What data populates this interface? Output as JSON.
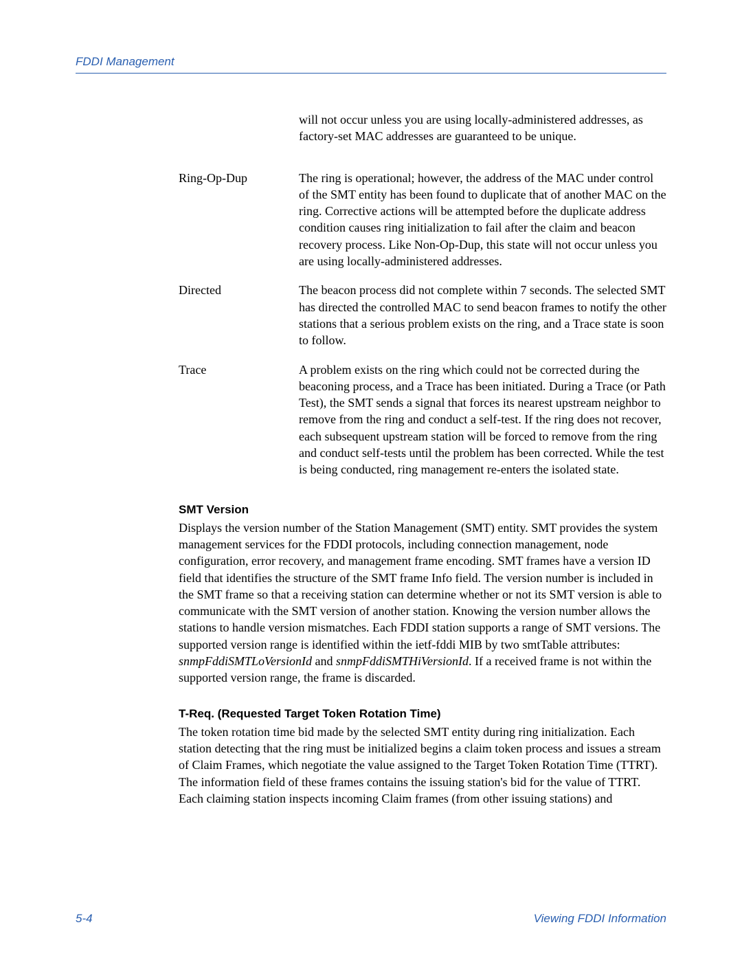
{
  "header": {
    "title": "FDDI Management"
  },
  "colors": {
    "accent": "#2a5fb0",
    "text": "#000000",
    "background": "#ffffff"
  },
  "typography": {
    "body_font": "Palatino Linotype",
    "heading_font": "Arial",
    "body_size_pt": 11,
    "heading_size_pt": 10
  },
  "orphan_def": "will not occur unless you are using locally-administered addresses, as factory-set MAC addresses are guaranteed to be unique.",
  "definitions": [
    {
      "term": "Ring-Op-Dup",
      "def": "The ring is operational; however, the address of the MAC under control of the SMT entity has been found to duplicate that of another MAC on the ring. Corrective actions will be attempted before the duplicate address condition causes ring initialization to fail after the claim and beacon recovery process. Like Non-Op-Dup, this state will not occur unless you are using locally-administered addresses."
    },
    {
      "term": "Directed",
      "def": "The beacon process did not complete within 7 seconds. The selected SMT has directed the controlled MAC to send beacon frames to notify the other stations that a serious problem exists on the ring, and a Trace state is soon to follow."
    },
    {
      "term": "Trace",
      "def": "A problem exists on the ring which could not be corrected during the beaconing process, and a Trace has been initiated. During a Trace (or Path Test), the SMT sends a signal that forces its nearest upstream neighbor to remove from the ring and conduct a self-test. If the ring does not recover, each subsequent upstream station will be forced to remove from the ring and conduct self-tests until the problem has been corrected. While the test is being conducted, ring management re-enters the isolated state."
    }
  ],
  "sections": [
    {
      "heading": "SMT Version",
      "body_pre": "Displays the version number of the Station Management (SMT) entity. SMT provides the system management services for the FDDI protocols, including connection management, node configuration, error recovery, and management frame encoding. SMT frames have a version ID field that identifies the structure of the SMT frame Info field. The version number is included in the SMT frame so that a receiving station can determine whether or not its SMT version is able to communicate with the SMT version of another station. Knowing the version number allows the stations to handle version mismatches. Each FDDI station supports a range of SMT versions. The supported version range is identified within the ietf-fddi MIB by two smtTable attributes: ",
      "ital1": "snmpFddiSMTLoVersionId",
      "mid1": " and ",
      "ital2": "snmpFddiSMTHiVersionId",
      "body_post": ". If a received frame is not within the supported version range, the frame is discarded."
    },
    {
      "heading": "T-Req. (Requested Target Token Rotation Time)",
      "body_pre": "The token rotation time bid made by the selected SMT entity during ring initialization. Each station detecting that the ring must be initialized begins a claim token process and issues a stream of Claim Frames, which negotiate the value assigned to the Target Token Rotation Time (TTRT). The information field of these frames contains the issuing station's bid for the value of TTRT. Each claiming station inspects incoming Claim frames (from other issuing stations) and",
      "ital1": "",
      "mid1": "",
      "ital2": "",
      "body_post": ""
    }
  ],
  "footer": {
    "left": "5-4",
    "right": "Viewing FDDI Information"
  }
}
